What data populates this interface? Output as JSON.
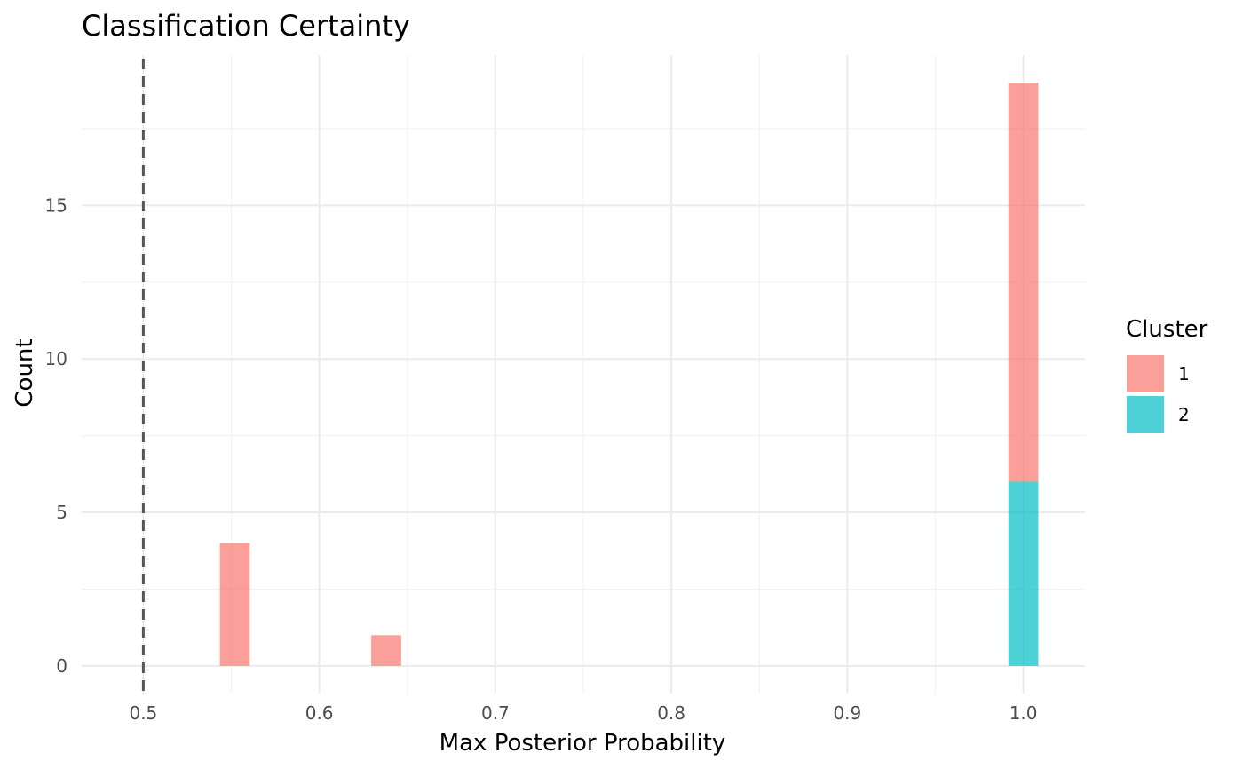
{
  "chart_data": {
    "type": "bar",
    "title": "Classification Certainty",
    "xlabel": "Max Posterior Probability",
    "ylabel": "Count",
    "xlim": [
      0.465,
      1.035
    ],
    "ylim": [
      -0.9,
      19.9
    ],
    "x_ticks": [
      0.5,
      0.6,
      0.7,
      0.8,
      0.9,
      1.0
    ],
    "x_tick_labels": [
      "0.5",
      "0.6",
      "0.7",
      "0.8",
      "0.9",
      "1.0"
    ],
    "y_ticks": [
      0,
      5,
      10,
      15
    ],
    "y_tick_labels": [
      "0",
      "5",
      "10",
      "15"
    ],
    "bin_width": 0.017,
    "stacked": true,
    "reference_line": {
      "x": 0.5,
      "style": "dashed",
      "color": "#555555"
    },
    "series": [
      {
        "name": "1",
        "color": "#F8766D",
        "bins": [
          {
            "x": 0.552,
            "count": 4
          },
          {
            "x": 0.638,
            "count": 1
          },
          {
            "x": 1.0,
            "count": 13
          }
        ]
      },
      {
        "name": "2",
        "color": "#00BFC4",
        "bins": [
          {
            "x": 1.0,
            "count": 6
          }
        ]
      }
    ],
    "legend": {
      "title": "Cluster",
      "position": "right",
      "entries": [
        "1",
        "2"
      ]
    },
    "grid": true
  }
}
